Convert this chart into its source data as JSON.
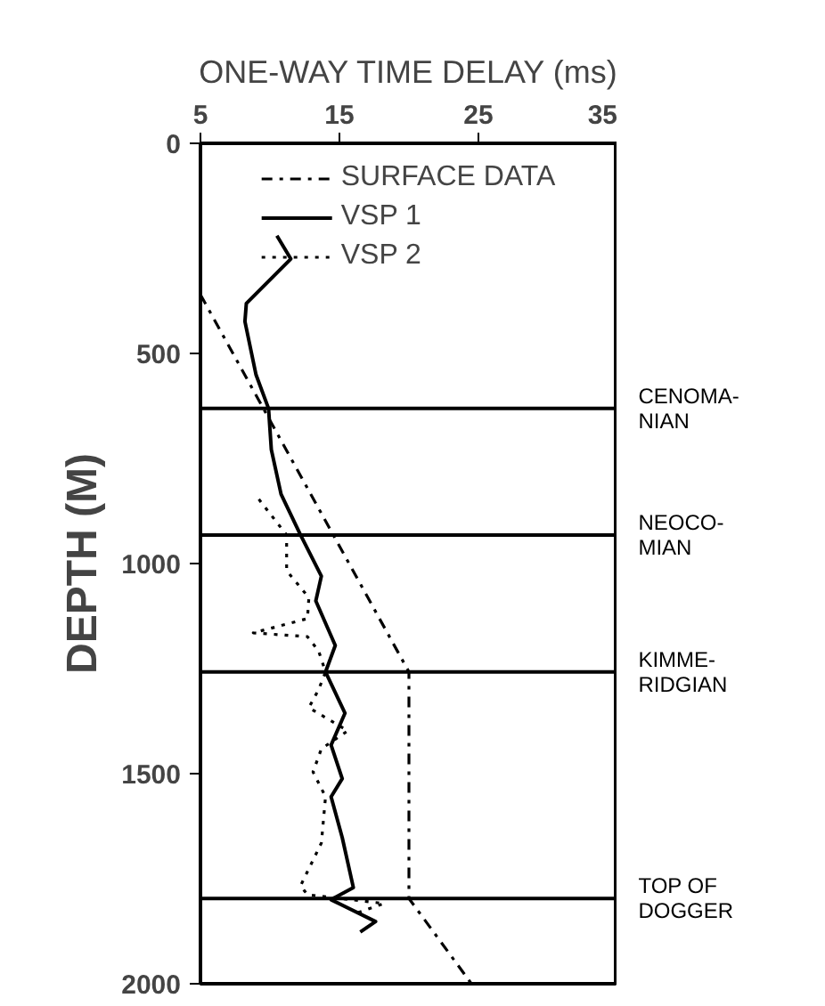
{
  "chart_data": {
    "type": "line",
    "xlabel": "ONE-WAY TIME DELAY (ms)",
    "ylabel": "DEPTH (M)",
    "xlim": [
      5,
      35
    ],
    "xticks": [
      5,
      15,
      25,
      35
    ],
    "ylim": [
      2000,
      0
    ],
    "yticks": [
      0,
      500,
      1000,
      1500,
      2000
    ],
    "grid": false,
    "legend": "top",
    "marker": "none",
    "series": [
      {
        "name": "SURFACE DATA",
        "color": "#000000",
        "line_style": "dashdot",
        "x": [
          5,
          20,
          20,
          24.5
        ],
        "values": [
          360,
          1258,
          1797,
          2000
        ]
      },
      {
        "name": "VSP 1",
        "color": "#000000",
        "line_style": "solid",
        "x": [
          10.5,
          11.5,
          8.3,
          8.2,
          9.0,
          9.9,
          10.1,
          10.8,
          12.2,
          13.7,
          13.3,
          14.7,
          14.0,
          15.4,
          14.4,
          15.2,
          14.4,
          15.2,
          16.0,
          14.4,
          17.6,
          16.5
        ],
        "values": [
          220,
          275,
          381,
          424,
          551,
          631,
          729,
          835,
          932,
          1030,
          1089,
          1195,
          1258,
          1356,
          1432,
          1512,
          1555,
          1652,
          1771,
          1800,
          1852,
          1877
        ]
      },
      {
        "name": "VSP 2",
        "color": "#000000",
        "line_style": "dotted",
        "x": [
          9.2,
          11.2,
          11.2,
          12.8,
          12.7,
          8.8,
          12.7,
          13.5,
          14.0,
          13.5,
          12.8,
          15.6,
          13.7,
          13.1,
          14.0,
          13.7,
          12.2,
          12.7,
          18.2,
          16.3
        ],
        "values": [
          847,
          932,
          1017,
          1081,
          1131,
          1165,
          1174,
          1208,
          1258,
          1300,
          1343,
          1398,
          1441,
          1496,
          1555,
          1665,
          1767,
          1788,
          1809,
          1831
        ]
      }
    ],
    "ref_lines": [
      {
        "axis": "y",
        "value": 631,
        "label": "CENOMA-\nNIAN"
      },
      {
        "axis": "y",
        "value": 932,
        "label": "NEOCO-\nMIAN"
      },
      {
        "axis": "y",
        "value": 1258,
        "label": "KIMME-\nRIDGIAN"
      },
      {
        "axis": "y",
        "value": 1797,
        "label": "TOP OF\nDOGGER"
      }
    ]
  }
}
